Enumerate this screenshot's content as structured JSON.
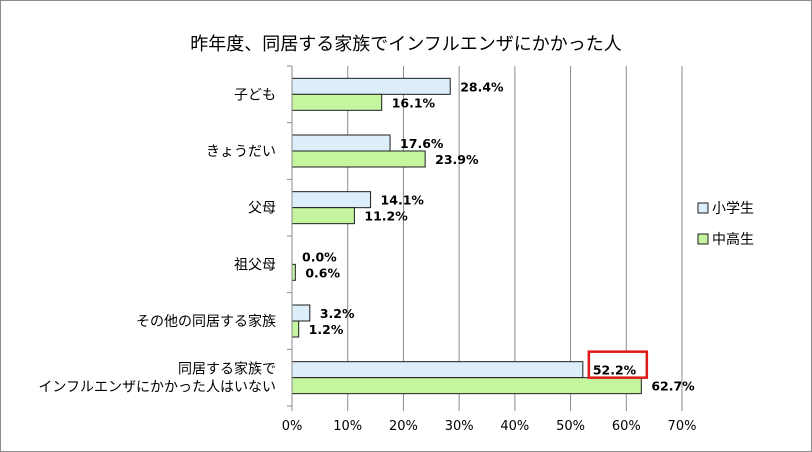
{
  "chart_data": {
    "type": "bar",
    "orientation": "horizontal",
    "title": "昨年度、同居する家族でインフルエンザにかかった人",
    "categories": [
      [
        "子ども"
      ],
      [
        "きょうだい"
      ],
      [
        "父母"
      ],
      [
        "祖父母"
      ],
      [
        "その他の同居する家族"
      ],
      [
        "同居する家族で",
        "インフルエンザにかかった人はいない"
      ]
    ],
    "series": [
      {
        "name": "小学生",
        "color": "#dbeefa",
        "values": [
          28.4,
          17.6,
          14.1,
          0.0,
          3.2,
          52.2
        ],
        "labels": [
          "28.4%",
          "17.6%",
          "14.1%",
          "0.0%",
          "3.2%",
          "52.2%"
        ]
      },
      {
        "name": "中高生",
        "color": "#c6f5a0",
        "values": [
          16.1,
          23.9,
          11.2,
          0.6,
          1.2,
          62.7
        ],
        "labels": [
          "16.1%",
          "23.9%",
          "11.2%",
          "0.6%",
          "1.2%",
          "62.7%"
        ]
      }
    ],
    "xlim": [
      0,
      70
    ],
    "xticks": [
      "0%",
      "10%",
      "20%",
      "30%",
      "40%",
      "50%",
      "60%",
      "70%"
    ],
    "grid": true,
    "legend_position": "right",
    "highlight": {
      "series": 0,
      "category": 5,
      "color": "#e01818"
    }
  }
}
